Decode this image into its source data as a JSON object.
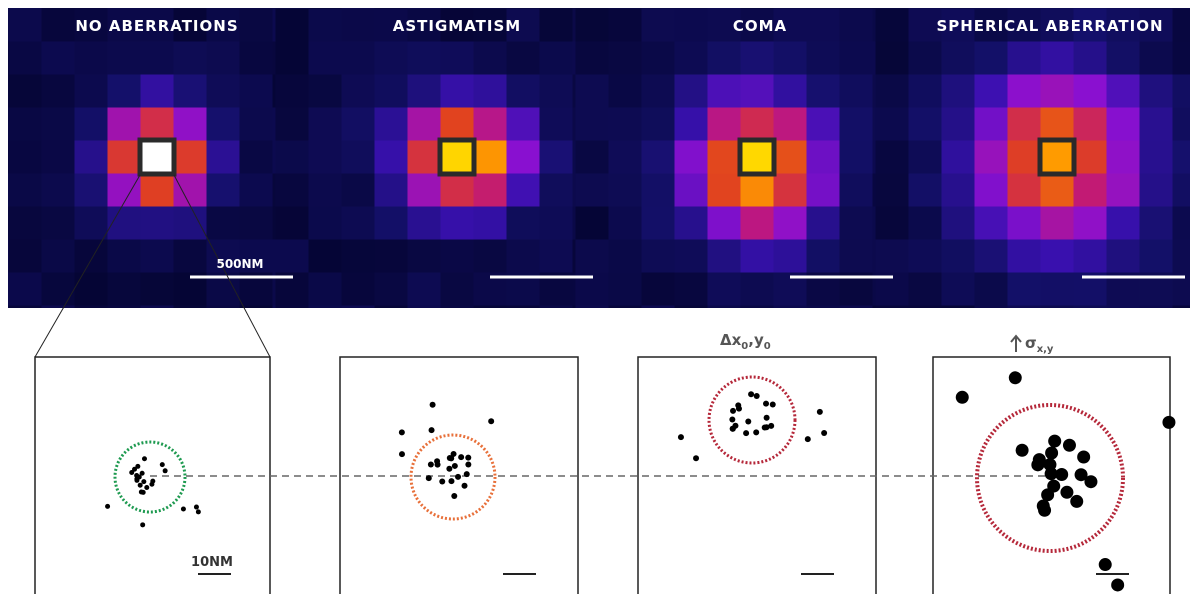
{
  "panels": [
    {
      "title": "NO ABERRATIONS",
      "scale_label": "500NM",
      "zoom_scale_label": "10NM"
    },
    {
      "title": "ASTIGMATISM"
    },
    {
      "title": "COMA",
      "shift_label": {
        "main": "Δx",
        "sub1": "0",
        "mid": ",y",
        "sub2": "0"
      }
    },
    {
      "title": "SPHERICAL ABERRATION",
      "width_label": {
        "main": "σ",
        "sub": "x,y"
      }
    }
  ]
}
